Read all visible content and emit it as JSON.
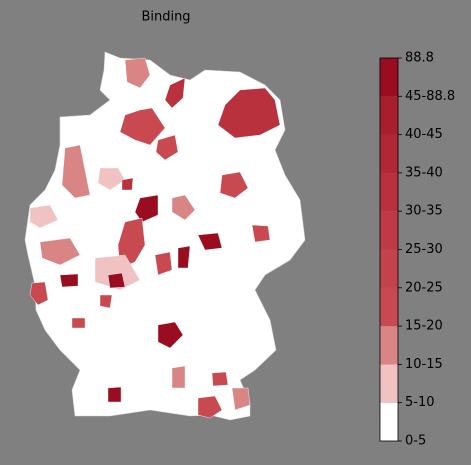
{
  "title": "Binding",
  "colorbar": {
    "labels": [
      "0-5",
      "5-10",
      "10-15",
      "15-20",
      "20-25",
      "25-30",
      "30-35",
      "35-40",
      "40-45",
      "45-88.8",
      "88.8"
    ],
    "colors": [
      "#ffffff",
      "#f0c2c2",
      "#d98585",
      "#c84a50",
      "#c4434b",
      "#bf3a45",
      "#b8313d",
      "#b02834",
      "#a81e2c",
      "#9a0c20"
    ]
  }
}
